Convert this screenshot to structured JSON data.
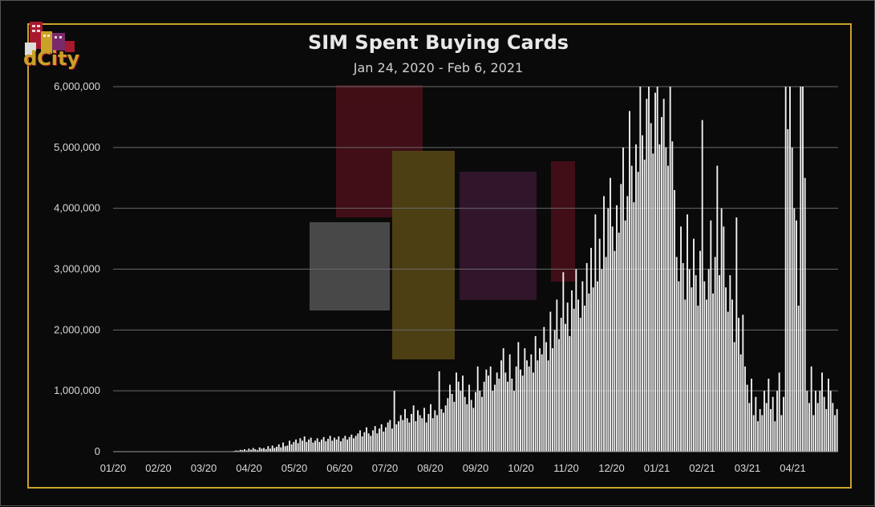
{
  "logo_text": "dCity",
  "colors": {
    "accent": "#c9a227",
    "bars": "#f2f2f2",
    "background": "#0a0a0a",
    "logo_red": "#a8182f",
    "logo_gold": "#c9a227",
    "logo_purple": "#7a2a6a"
  },
  "chart_data": {
    "type": "bar",
    "title": "SIM Spent Buying Cards",
    "subtitle": "Jan 24, 2020 - Feb 6, 2021",
    "xlabel": "",
    "ylabel": "",
    "ylim": [
      0,
      6000000
    ],
    "yticks": [
      "0",
      "1,000,000",
      "2,000,000",
      "3,000,000",
      "4,000,000",
      "5,000,000",
      "6,000,000"
    ],
    "xticks": [
      "01/20",
      "02/20",
      "03/20",
      "04/20",
      "05/20",
      "06/20",
      "07/20",
      "08/20",
      "09/20",
      "10/20",
      "11/20",
      "12/20",
      "01/21",
      "02/21",
      "03/21",
      "04/21"
    ],
    "grid": true,
    "legend": "none",
    "series": [
      {
        "values": [
          0,
          0,
          0,
          0,
          0,
          0,
          0,
          0,
          0,
          0,
          0,
          0,
          0,
          0,
          0,
          0,
          0,
          0,
          0,
          0,
          0,
          0,
          0,
          0,
          0,
          0,
          0,
          0,
          0,
          0,
          0,
          0,
          0,
          0,
          0,
          0,
          0,
          0,
          0,
          0,
          0,
          0,
          0,
          0,
          0,
          0,
          0,
          0,
          0,
          0,
          0,
          0,
          0,
          0,
          0,
          0,
          10000,
          20000,
          15000,
          30000,
          25000,
          40000,
          20000,
          50000,
          30000,
          60000,
          40000,
          25000,
          70000,
          50000,
          60000,
          40000,
          90000,
          50000,
          100000,
          60000,
          80000,
          120000,
          70000,
          150000,
          90000,
          100000,
          180000,
          120000,
          160000,
          200000,
          140000,
          220000,
          180000,
          250000,
          160000,
          200000,
          230000,
          150000,
          180000,
          220000,
          160000,
          200000,
          240000,
          170000,
          210000,
          260000,
          180000,
          230000,
          200000,
          250000,
          170000,
          220000,
          260000,
          200000,
          240000,
          280000,
          220000,
          260000,
          300000,
          350000,
          250000,
          320000,
          400000,
          300000,
          260000,
          350000,
          420000,
          300000,
          380000,
          450000,
          330000,
          400000,
          480000,
          520000,
          380000,
          1000000,
          450000,
          500000,
          600000,
          520000,
          700000,
          550000,
          480000,
          620000,
          760000,
          500000,
          680000,
          600000,
          550000,
          720000,
          480000,
          620000,
          780000,
          550000,
          680000,
          600000,
          1320000,
          700000,
          640000,
          760000,
          880000,
          1100000,
          950000,
          820000,
          1300000,
          1150000,
          1000000,
          1250000,
          900000,
          780000,
          1100000,
          850000,
          720000,
          980000,
          1400000,
          1000000,
          900000,
          1150000,
          1350000,
          1250000,
          1400000,
          1000000,
          1100000,
          1300000,
          1200000,
          1500000,
          1700000,
          1300000,
          1150000,
          1600000,
          1200000,
          1000000,
          1400000,
          1800000,
          1350000,
          1250000,
          1700000,
          1500000,
          1400000,
          1600000,
          1300000,
          1900000,
          1500000,
          1700000,
          1600000,
          2050000,
          1800000,
          1500000,
          2300000,
          1700000,
          2000000,
          2500000,
          1850000,
          2200000,
          2950000,
          2100000,
          2450000,
          1900000,
          2650000,
          2350000,
          3000000,
          2500000,
          2200000,
          2800000,
          2400000,
          3100000,
          2600000,
          3350000,
          2700000,
          3900000,
          2800000,
          3500000,
          3000000,
          4200000,
          3200000,
          4000000,
          4500000,
          3700000,
          3300000,
          4050000,
          3600000,
          4400000,
          5000000,
          3800000,
          4200000,
          5600000,
          4700000,
          4100000,
          5050000,
          4600000,
          6000000,
          5200000,
          4800000,
          5800000,
          6000000,
          5400000,
          4900000,
          5900000,
          6000000,
          5050000,
          5500000,
          5800000,
          5000000,
          4700000,
          6000000,
          5100000,
          4300000,
          3200000,
          2800000,
          3700000,
          3100000,
          2500000,
          3900000,
          3000000,
          2700000,
          3500000,
          2900000,
          2400000,
          3300000,
          5450000,
          2800000,
          2500000,
          3000000,
          3800000,
          2600000,
          3200000,
          4700000,
          2900000,
          4000000,
          3700000,
          2700000,
          2300000,
          2900000,
          2500000,
          1800000,
          3850000,
          2200000,
          1600000,
          2250000,
          1400000,
          1100000,
          800000,
          1200000,
          600000,
          900000,
          500000,
          700000,
          600000,
          1000000,
          800000,
          1200000,
          700000,
          900000,
          500000,
          1000000,
          1300000,
          600000,
          900000,
          6000000,
          5300000,
          6000000,
          5000000,
          4000000,
          3800000,
          2400000,
          6000000,
          6000000,
          4500000,
          1000000,
          800000,
          1400000,
          600000,
          1000000,
          800000,
          1000000,
          1300000,
          900000,
          700000,
          1200000,
          1000000,
          800000,
          600000,
          700000
        ]
      }
    ]
  }
}
